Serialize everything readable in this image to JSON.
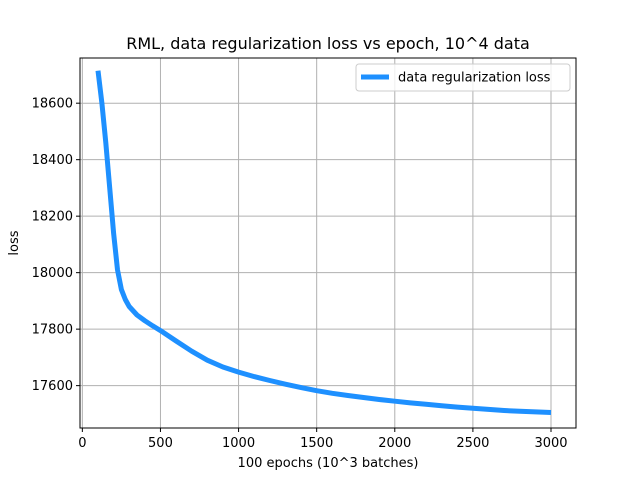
{
  "chart_data": {
    "type": "line",
    "title": "RML, data regularization loss vs epoch, 10^4 data",
    "xlabel": "100 epochs (10^3 batches)",
    "ylabel": "loss",
    "xlim": [
      -15,
      3160
    ],
    "ylim": [
      17450,
      18760
    ],
    "xticks": [
      0,
      500,
      1000,
      1500,
      2000,
      2500,
      3000
    ],
    "xtick_labels": [
      "0",
      "500",
      "1000",
      "1500",
      "2000",
      "2500",
      "3000"
    ],
    "yticks": [
      17600,
      17800,
      18000,
      18200,
      18400,
      18600
    ],
    "ytick_labels": [
      "17600",
      "17800",
      "18000",
      "18200",
      "18400",
      "18600"
    ],
    "grid": true,
    "legend_position": "top-right",
    "series": [
      {
        "name": "data regularization loss",
        "color": "#1e90ff",
        "x": [
          100,
          125,
          150,
          175,
          200,
          225,
          250,
          275,
          300,
          350,
          400,
          450,
          500,
          600,
          700,
          800,
          900,
          1000,
          1100,
          1200,
          1300,
          1400,
          1500,
          1600,
          1700,
          1800,
          1900,
          2000,
          2100,
          2200,
          2300,
          2400,
          2500,
          2600,
          2700,
          2800,
          2900,
          3000
        ],
        "y": [
          18715,
          18600,
          18460,
          18300,
          18140,
          18010,
          17940,
          17905,
          17880,
          17850,
          17830,
          17812,
          17795,
          17758,
          17722,
          17690,
          17666,
          17648,
          17632,
          17618,
          17605,
          17593,
          17582,
          17573,
          17565,
          17558,
          17551,
          17545,
          17539,
          17534,
          17529,
          17524,
          17520,
          17516,
          17512,
          17509,
          17507,
          17505
        ]
      }
    ]
  }
}
